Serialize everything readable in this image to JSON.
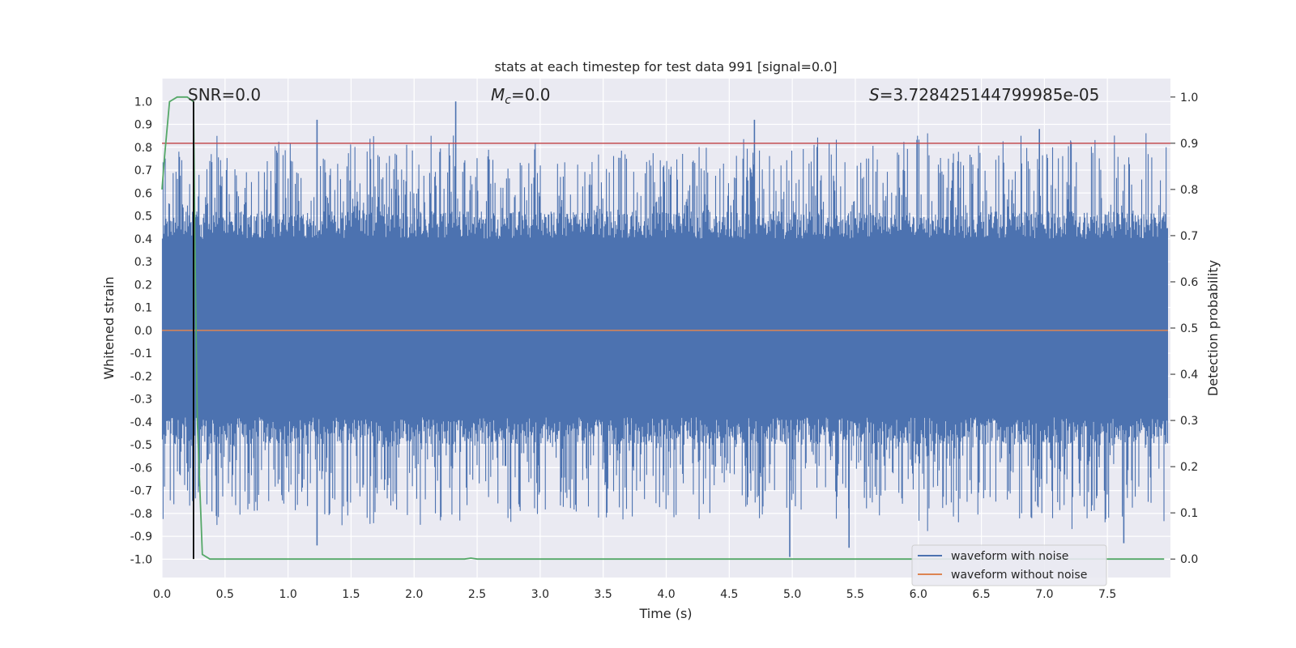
{
  "chart_data": {
    "type": "line",
    "title": "stats at each timestep for test data 991 [signal=0.0]",
    "xlabel": "Time (s)",
    "ylabel_left": "Whitened strain",
    "ylabel_right": "Detection probability",
    "xlim": [
      0.0,
      8.0
    ],
    "ylim_left": [
      -1.08,
      1.1
    ],
    "ylim_right": [
      -0.04,
      1.04
    ],
    "x_ticks": [
      "0.0",
      "0.5",
      "1.0",
      "1.5",
      "2.0",
      "2.5",
      "3.0",
      "3.5",
      "4.0",
      "4.5",
      "5.0",
      "5.5",
      "6.0",
      "6.5",
      "7.0",
      "7.5"
    ],
    "y_ticks_left": [
      "1.0",
      "0.9",
      "0.8",
      "0.7",
      "0.6",
      "0.5",
      "0.4",
      "0.3",
      "0.2",
      "0.1",
      "0.0",
      "-0.1",
      "-0.2",
      "-0.3",
      "-0.4",
      "-0.5",
      "-0.6",
      "-0.7",
      "-0.8",
      "-0.9",
      "-1.0"
    ],
    "y_ticks_right": [
      "1.0",
      "0.9",
      "0.8",
      "0.7",
      "0.6",
      "0.5",
      "0.4",
      "0.3",
      "0.2",
      "0.1",
      "0.0"
    ],
    "annotations": {
      "snr": "SNR=0.0",
      "mc_symbol": "M",
      "mc_sub": "c",
      "mc_value": "=0.0",
      "s_symbol": "S",
      "s_value": "=3.728425144799985e-05"
    },
    "threshold_line": {
      "axis": "right",
      "value": 0.9,
      "color": "#c44e52"
    },
    "marker_line": {
      "axis": "x",
      "value": 0.25,
      "color": "#000000"
    },
    "series": [
      {
        "name": "waveform with noise",
        "axis": "left",
        "color": "#4c72b0",
        "description": "noise",
        "core_amplitude": 0.4,
        "peaks": [
          [
            1.23,
            0.92
          ],
          [
            2.33,
            1.0
          ],
          [
            4.7,
            0.92
          ],
          [
            6.96,
            0.88
          ],
          [
            4.98,
            -0.99
          ],
          [
            5.45,
            -0.95
          ],
          [
            1.23,
            -0.94
          ],
          [
            7.63,
            -0.93
          ]
        ]
      },
      {
        "name": "waveform without noise",
        "axis": "left",
        "color": "#dd8452",
        "x": [
          0.0,
          8.0
        ],
        "values": [
          0.0,
          0.0
        ]
      },
      {
        "name": "detection probability",
        "axis": "right",
        "color": "#55a868",
        "x": [
          0.0,
          0.02,
          0.06,
          0.12,
          0.2,
          0.25,
          0.26,
          0.28,
          0.32,
          0.38,
          1.0,
          2.0,
          2.4,
          2.45,
          2.5,
          3.0,
          4.0,
          5.0,
          6.0,
          7.0,
          7.95
        ],
        "values": [
          0.8,
          0.87,
          0.99,
          1.0,
          1.0,
          0.99,
          0.7,
          0.3,
          0.01,
          0.0,
          0.0,
          0.0,
          0.0,
          0.002,
          0.0,
          0.0,
          0.0,
          0.0,
          0.0,
          0.0,
          0.0
        ]
      }
    ],
    "legend": {
      "placement": "bottom-right",
      "entries": [
        {
          "label": "waveform with noise",
          "color": "#4c72b0"
        },
        {
          "label": "waveform without noise",
          "color": "#dd8452"
        }
      ]
    }
  }
}
